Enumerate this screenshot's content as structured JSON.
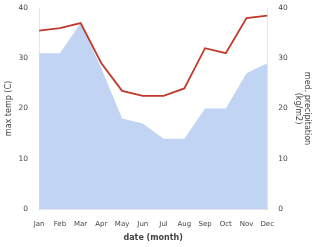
{
  "chart_data": {
    "type": "line",
    "xlabel": "date (month)",
    "ylabel": "max temp (C)",
    "y2label": "med. precipitation\n(kg/m2)",
    "categories": [
      "Jan",
      "Feb",
      "Mar",
      "Apr",
      "May",
      "Jun",
      "Jul",
      "Aug",
      "Sep",
      "Oct",
      "Nov",
      "Dec"
    ],
    "series": [
      {
        "type": "area",
        "color": "#aec6f0",
        "values": [
          31,
          31,
          37,
          28,
          18,
          17,
          14,
          14,
          20,
          20,
          27,
          29
        ]
      },
      {
        "type": "line",
        "color": "#c0392b",
        "axis": "y2",
        "values": [
          35.5,
          36,
          37,
          29,
          23.5,
          22.5,
          22.5,
          24,
          32,
          31,
          38,
          38.5
        ]
      }
    ],
    "ylim": [
      0,
      40
    ],
    "yticks": [
      0,
      10,
      20,
      30,
      40
    ],
    "y2lim": [
      0,
      40
    ],
    "y2ticks": [
      0,
      10,
      20,
      30,
      40
    ],
    "grid": false
  }
}
